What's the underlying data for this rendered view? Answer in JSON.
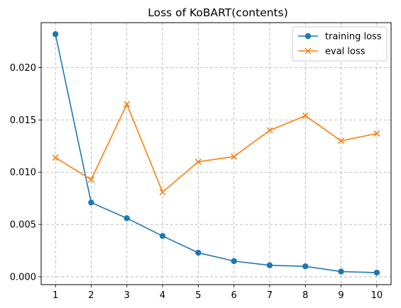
{
  "chart_data": {
    "type": "line",
    "title": "Loss of KoBART(contents)",
    "xlabel": "",
    "ylabel": "",
    "x": [
      1,
      2,
      3,
      4,
      5,
      6,
      7,
      8,
      9,
      10
    ],
    "xlim": [
      0.6,
      10.4
    ],
    "ylim": [
      -0.00075,
      0.0243
    ],
    "yticks": [
      "0.000",
      "0.005",
      "0.010",
      "0.015",
      "0.020"
    ],
    "ytick_values": [
      0.0,
      0.005,
      0.01,
      0.015,
      0.02
    ],
    "grid": true,
    "legend_position": "top-right",
    "series": [
      {
        "name": "training loss",
        "marker": "circle",
        "color": "#1f77b4",
        "values": [
          0.0232,
          0.0071,
          0.0056,
          0.0039,
          0.0023,
          0.0015,
          0.0011,
          0.001,
          0.0005,
          0.0004
        ]
      },
      {
        "name": "eval loss",
        "marker": "x",
        "color": "#ff7f0e",
        "values": [
          0.0114,
          0.0093,
          0.0165,
          0.0081,
          0.011,
          0.0115,
          0.014,
          0.0154,
          0.013,
          0.0137
        ]
      }
    ]
  }
}
